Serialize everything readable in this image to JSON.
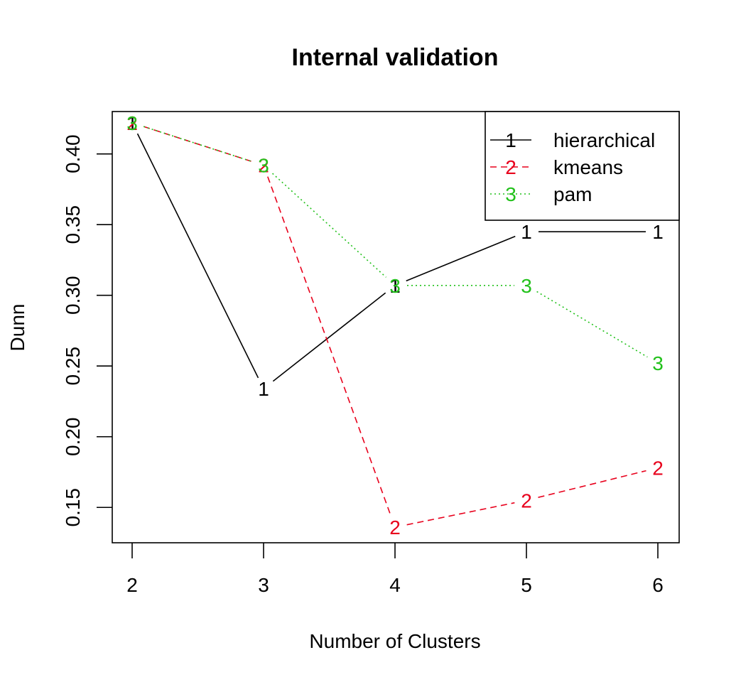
{
  "chart_data": {
    "type": "line",
    "title": "Internal validation",
    "xlabel": "Number of Clusters",
    "ylabel": "Dunn",
    "x": [
      2,
      3,
      4,
      5,
      6
    ],
    "xticks": [
      "2",
      "3",
      "4",
      "5",
      "6"
    ],
    "yticks": [
      "0.15",
      "0.20",
      "0.25",
      "0.30",
      "0.35",
      "0.40"
    ],
    "ylim": [
      0.125,
      0.43
    ],
    "legend_position": "top-right",
    "series": [
      {
        "name": "hierarchical",
        "marker": "1",
        "color": "#000000",
        "dash": "solid",
        "values": [
          0.422,
          0.234,
          0.307,
          0.345,
          0.345
        ]
      },
      {
        "name": "kmeans",
        "marker": "2",
        "color": "#e8001c",
        "dash": "dashed",
        "values": [
          0.422,
          0.392,
          0.136,
          0.155,
          0.178
        ]
      },
      {
        "name": "pam",
        "marker": "3",
        "color": "#22c11b",
        "dash": "dotted",
        "values": [
          0.422,
          0.392,
          0.307,
          0.307,
          0.252
        ]
      }
    ]
  }
}
